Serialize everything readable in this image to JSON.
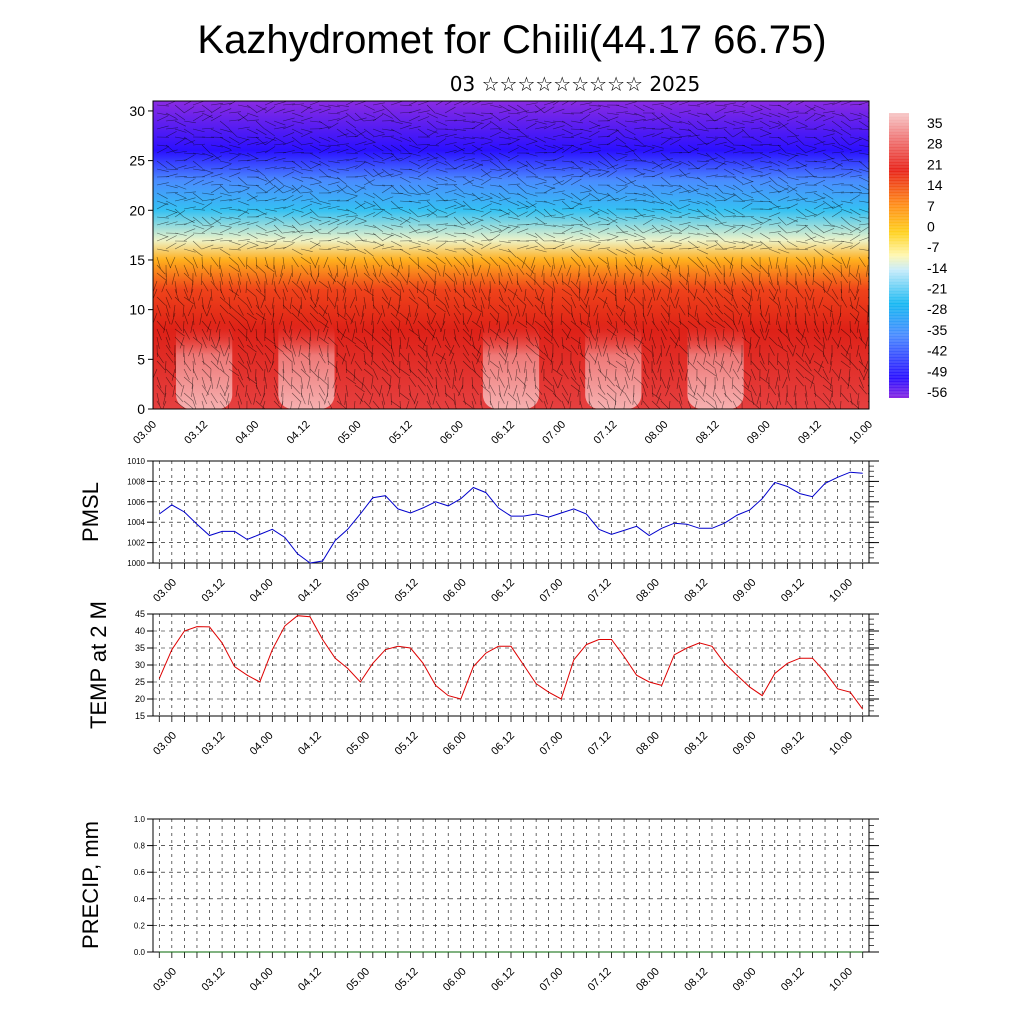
{
  "header": {
    "title": "Kazhydromet for Chiili(44.17 66.75)",
    "subtitle": "03 ☆☆☆☆☆☆☆☆☆ 2025"
  },
  "chart_data": [
    {
      "type": "heatmap",
      "name": "cross-section",
      "xticks": [
        "03.00",
        "03.12",
        "04.00",
        "04.12",
        "05.00",
        "05.12",
        "06.00",
        "06.12",
        "07.00",
        "07.12",
        "08.00",
        "08.12",
        "09.00",
        "09.12",
        "10.00"
      ],
      "ylim": [
        0,
        31
      ],
      "yticks": [
        0,
        5,
        10,
        15,
        20,
        25,
        30
      ],
      "colorbar_labels": [
        "35",
        "28",
        "21",
        "14",
        "7",
        "0",
        "-7",
        "-14",
        "-21",
        "-28",
        "-35",
        "-42",
        "-49",
        "-56"
      ],
      "layers": [
        {
          "height": 0,
          "temp": 32
        },
        {
          "height": 8,
          "temp": 21
        },
        {
          "height": 12,
          "temp": 12
        },
        {
          "height": 15,
          "temp": 0
        },
        {
          "height": 17,
          "temp": -14
        },
        {
          "height": 20,
          "temp": -28
        },
        {
          "height": 23,
          "temp": -42
        },
        {
          "height": 26,
          "temp": -56
        },
        {
          "height": 31,
          "temp": -60
        }
      ],
      "surface_warm_periods": [
        "03.12",
        "04.12",
        "06.12",
        "07.12",
        "08.12"
      ],
      "colors": {
        "warm": "#e8231a",
        "hot": "#f7b7b7",
        "yellow": "#ffe54a",
        "cold": "#5522ee"
      }
    },
    {
      "type": "line",
      "name": "pmsl",
      "ylabel": "PMSL",
      "ylim": [
        1000,
        1010
      ],
      "yticks": [
        "1000",
        "1002",
        "1004",
        "1006",
        "1008",
        "1010"
      ],
      "xticks": [
        "03.00",
        "03.12",
        "04.00",
        "04.12",
        "05.00",
        "05.12",
        "06.00",
        "06.12",
        "07.00",
        "07.12",
        "08.00",
        "08.12",
        "09.00",
        "09.12",
        "10.00"
      ],
      "color": "#0000cc",
      "values": [
        1004.8,
        1005.7,
        1005.0,
        1003.8,
        1002.7,
        1003.1,
        1003.1,
        1002.3,
        1002.8,
        1003.3,
        1002.5,
        1000.9,
        1000.0,
        1000.2,
        1002.2,
        1003.3,
        1004.8,
        1006.4,
        1006.6,
        1005.3,
        1004.9,
        1005.4,
        1006.0,
        1005.6,
        1006.3,
        1007.4,
        1006.9,
        1005.4,
        1004.6,
        1004.6,
        1004.8,
        1004.5,
        1004.9,
        1005.3,
        1004.8,
        1003.3,
        1002.8,
        1003.2,
        1003.6,
        1002.7,
        1003.4,
        1003.9,
        1003.8,
        1003.4,
        1003.4,
        1003.9,
        1004.7,
        1005.2,
        1006.3,
        1007.9,
        1007.5,
        1006.8,
        1006.5,
        1007.8,
        1008.4,
        1008.9,
        1008.8
      ]
    },
    {
      "type": "line",
      "name": "temp",
      "ylabel": "TEMP at 2 M",
      "ylim": [
        15,
        45
      ],
      "yticks": [
        "15",
        "20",
        "25",
        "30",
        "35",
        "40",
        "45"
      ],
      "xticks": [
        "03.00",
        "03.12",
        "04.00",
        "04.12",
        "05.00",
        "05.12",
        "06.00",
        "06.12",
        "07.00",
        "07.12",
        "08.00",
        "08.12",
        "09.00",
        "09.12",
        "10.00"
      ],
      "color": "#dd0000",
      "values": [
        26.0,
        34.5,
        40.0,
        41.3,
        41.2,
        36.5,
        29.5,
        27.0,
        25.0,
        34.5,
        41.5,
        44.5,
        44.2,
        37.5,
        32.0,
        29.0,
        25.0,
        30.5,
        34.5,
        35.5,
        35.0,
        30.5,
        24.0,
        21.0,
        20.0,
        29.5,
        33.5,
        35.5,
        35.5,
        30.0,
        24.5,
        22.0,
        20.0,
        31.5,
        36.0,
        37.5,
        37.5,
        32.5,
        27.0,
        25.0,
        24.0,
        33.0,
        35.0,
        36.5,
        35.5,
        30.5,
        27.0,
        23.5,
        21.0,
        27.5,
        30.5,
        32.0,
        32.0,
        28.0,
        23.0,
        22.0,
        17.0
      ]
    },
    {
      "type": "line",
      "name": "precip",
      "ylabel": "PRECIP, mm",
      "ylim": [
        0,
        1
      ],
      "yticks": [
        "0.0",
        "0.2",
        "0.4",
        "0.6",
        "0.8",
        "1.0"
      ],
      "xticks": [
        "03.00",
        "03.12",
        "04.00",
        "04.12",
        "05.00",
        "05.12",
        "06.00",
        "06.12",
        "07.00",
        "07.12",
        "08.00",
        "08.12",
        "09.00",
        "09.12",
        "10.00"
      ],
      "color": "#006600",
      "values": [
        0,
        0,
        0,
        0,
        0,
        0,
        0,
        0,
        0,
        0,
        0,
        0,
        0,
        0,
        0,
        0,
        0,
        0,
        0,
        0,
        0,
        0,
        0,
        0,
        0,
        0,
        0,
        0,
        0,
        0,
        0,
        0,
        0,
        0,
        0,
        0,
        0,
        0,
        0,
        0,
        0,
        0,
        0,
        0,
        0,
        0,
        0,
        0,
        0,
        0,
        0,
        0,
        0,
        0,
        0,
        0,
        0
      ]
    }
  ]
}
